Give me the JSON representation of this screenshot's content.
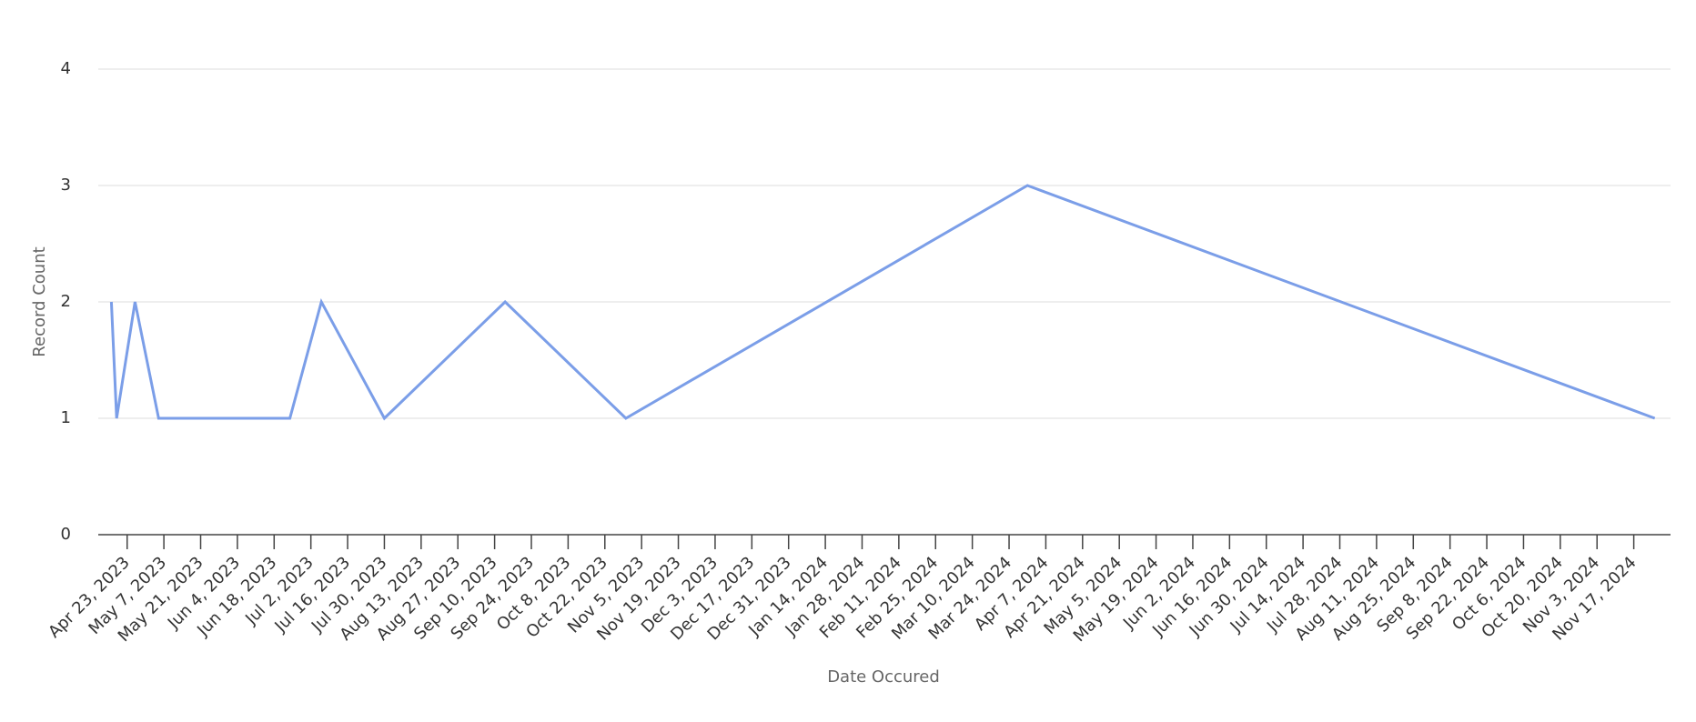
{
  "chart_data": {
    "type": "line",
    "x_label": "Date Occured",
    "y_label": "Record Count",
    "x": [
      "2023-04-17",
      "2023-04-19",
      "2023-04-26",
      "2023-05-05",
      "2023-06-24",
      "2023-07-06",
      "2023-07-30",
      "2023-09-14",
      "2023-10-30",
      "2024-03-31",
      "2024-11-25"
    ],
    "values": [
      2,
      1,
      2,
      1,
      1,
      2,
      1,
      2,
      1,
      3,
      1
    ],
    "color": "#7b9ee8",
    "xlim": [
      "2023-04-12",
      "2024-12-01"
    ],
    "xticks": [
      {
        "value": "2023-04-23",
        "label": "Apr 23, 2023"
      },
      {
        "value": "2023-05-07",
        "label": "May 7, 2023"
      },
      {
        "value": "2023-05-21",
        "label": "May 21, 2023"
      },
      {
        "value": "2023-06-04",
        "label": "Jun 4, 2023"
      },
      {
        "value": "2023-06-18",
        "label": "Jun 18, 2023"
      },
      {
        "value": "2023-07-02",
        "label": "Jul 2, 2023"
      },
      {
        "value": "2023-07-16",
        "label": "Jul 16, 2023"
      },
      {
        "value": "2023-07-30",
        "label": "Jul 30, 2023"
      },
      {
        "value": "2023-08-13",
        "label": "Aug 13, 2023"
      },
      {
        "value": "2023-08-27",
        "label": "Aug 27, 2023"
      },
      {
        "value": "2023-09-10",
        "label": "Sep 10, 2023"
      },
      {
        "value": "2023-09-24",
        "label": "Sep 24, 2023"
      },
      {
        "value": "2023-10-08",
        "label": "Oct 8, 2023"
      },
      {
        "value": "2023-10-22",
        "label": "Oct 22, 2023"
      },
      {
        "value": "2023-11-05",
        "label": "Nov 5, 2023"
      },
      {
        "value": "2023-11-19",
        "label": "Nov 19, 2023"
      },
      {
        "value": "2023-12-03",
        "label": "Dec 3, 2023"
      },
      {
        "value": "2023-12-17",
        "label": "Dec 17, 2023"
      },
      {
        "value": "2023-12-31",
        "label": "Dec 31, 2023"
      },
      {
        "value": "2024-01-14",
        "label": "Jan 14, 2024"
      },
      {
        "value": "2024-01-28",
        "label": "Jan 28, 2024"
      },
      {
        "value": "2024-02-11",
        "label": "Feb 11, 2024"
      },
      {
        "value": "2024-02-25",
        "label": "Feb 25, 2024"
      },
      {
        "value": "2024-03-10",
        "label": "Mar 10, 2024"
      },
      {
        "value": "2024-03-24",
        "label": "Mar 24, 2024"
      },
      {
        "value": "2024-04-07",
        "label": "Apr 7, 2024"
      },
      {
        "value": "2024-04-21",
        "label": "Apr 21, 2024"
      },
      {
        "value": "2024-05-05",
        "label": "May 5, 2024"
      },
      {
        "value": "2024-05-19",
        "label": "May 19, 2024"
      },
      {
        "value": "2024-06-02",
        "label": "Jun 2, 2024"
      },
      {
        "value": "2024-06-16",
        "label": "Jun 16, 2024"
      },
      {
        "value": "2024-06-30",
        "label": "Jun 30, 2024"
      },
      {
        "value": "2024-07-14",
        "label": "Jul 14, 2024"
      },
      {
        "value": "2024-07-28",
        "label": "Jul 28, 2024"
      },
      {
        "value": "2024-08-11",
        "label": "Aug 11, 2024"
      },
      {
        "value": "2024-08-25",
        "label": "Aug 25, 2024"
      },
      {
        "value": "2024-09-08",
        "label": "Sep 8, 2024"
      },
      {
        "value": "2024-09-22",
        "label": "Sep 22, 2024"
      },
      {
        "value": "2024-10-06",
        "label": "Oct 6, 2024"
      },
      {
        "value": "2024-10-20",
        "label": "Oct 20, 2024"
      },
      {
        "value": "2024-11-03",
        "label": "Nov 3, 2024"
      },
      {
        "value": "2024-11-17",
        "label": "Nov 17, 2024"
      }
    ],
    "ylim": [
      0,
      4
    ],
    "yticks": [
      0,
      1,
      2,
      3,
      4
    ],
    "grid": true
  }
}
